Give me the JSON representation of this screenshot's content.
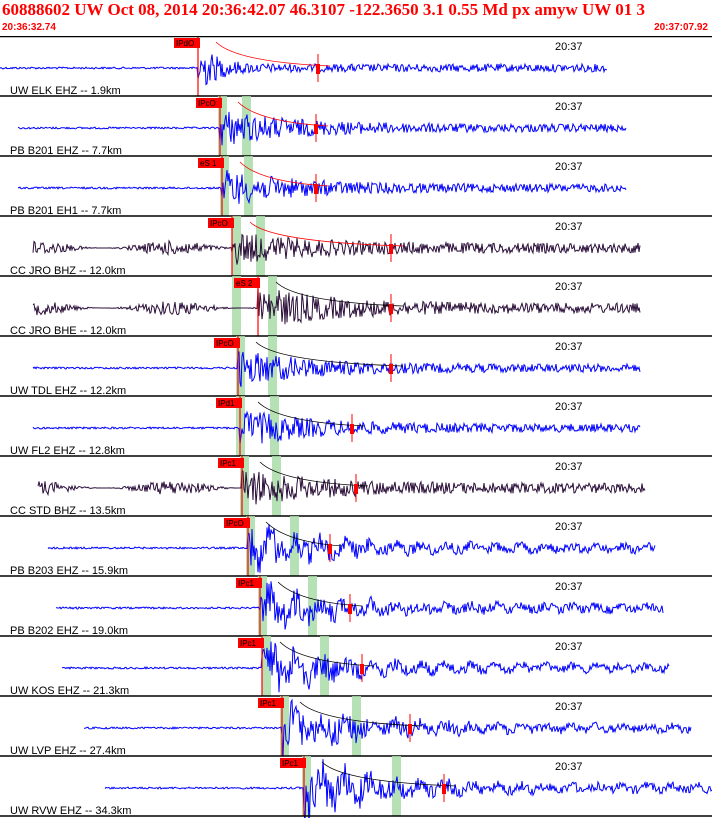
{
  "header": {
    "title": "60888602 UW Oct 08, 2014 20:36:42.07   46.3107 -122.3650  3.1 0.55 Md px amyw UW 01   3",
    "start_time": "20:36:32.74",
    "end_time": "20:37:07.92"
  },
  "colors": {
    "title": "#ff0000",
    "trace_blue": "#0000ff",
    "trace_dark": "#2b0f3a",
    "pick_box": "#ff0000",
    "window_band": "#a8dca8",
    "decay_curve": "#ff0000",
    "decay_curve_black": "#000000",
    "separator": "#000000"
  },
  "tick_label": "20:37",
  "traces": [
    {
      "label": "UW ELK EHZ -- 1.9km",
      "pick": "IPdO",
      "color": "blue",
      "amp": 0.9
    },
    {
      "label": "PB B201 EHZ -- 7.7km",
      "pick": "IPcO",
      "color": "blue",
      "amp": 0.6
    },
    {
      "label": "PB B201 EH1 -- 7.7km",
      "pick": "eS 1",
      "color": "blue",
      "amp": 0.6
    },
    {
      "label": "CC JRO BHZ -- 12.0km",
      "pick": "IPcO",
      "color": "dark",
      "amp": 0.5
    },
    {
      "label": "CC JRO BHE -- 12.0km",
      "pick": "eS 2",
      "color": "dark",
      "amp": 0.7
    },
    {
      "label": "UW TDL EHZ -- 12.2km",
      "pick": "IPcO",
      "color": "blue",
      "amp": 0.6
    },
    {
      "label": "UW FL2 EHZ -- 12.8km",
      "pick": "IPd1",
      "color": "blue",
      "amp": 0.6
    },
    {
      "label": "CC STD BHZ -- 13.5km",
      "pick": "IPc1",
      "color": "dark",
      "amp": 0.6
    },
    {
      "label": "PB B203 EHZ -- 15.9km",
      "pick": "IPcO",
      "color": "blue",
      "amp": 0.7
    },
    {
      "label": "PB B202 EHZ -- 19.0km",
      "pick": "IPc1",
      "color": "blue",
      "amp": 0.7
    },
    {
      "label": "UW KOS EHZ -- 21.3km",
      "pick": "IPc1",
      "color": "blue",
      "amp": 0.8
    },
    {
      "label": "UW LVP EHZ -- 27.4km",
      "pick": "IPc1",
      "color": "blue",
      "amp": 0.8
    },
    {
      "label": "UW RVW EHZ -- 34.3km",
      "pick": "IPc1",
      "color": "blue",
      "amp": 0.9
    }
  ]
}
